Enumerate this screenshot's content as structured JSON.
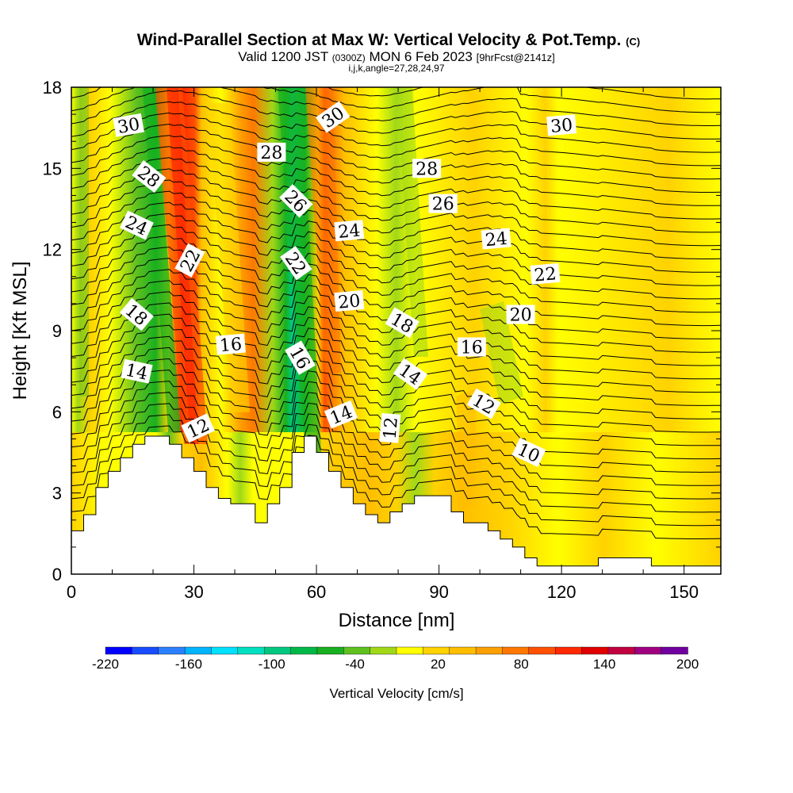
{
  "chart_data": {
    "type": "heatmap",
    "title": "Wind-Parallel Section at Max W: Vertical Velocity & Pot.Temp.",
    "title_units": "(C)",
    "subtitle": {
      "prefix": "Valid 1200 JST",
      "utc": "(0300Z)",
      "date": "MON 6 Feb 2023",
      "forecast": "[9hrFcst@2141z]"
    },
    "params": "i,j,k,angle=27,28,24,97",
    "xlabel": "Distance [nm]",
    "ylabel": "Height [Kft MSL]",
    "xlim": [
      0,
      159
    ],
    "ylim": [
      0,
      18
    ],
    "xticks": [
      "0",
      "30",
      "60",
      "90",
      "120",
      "150"
    ],
    "yticks": [
      "0",
      "3",
      "6",
      "9",
      "12",
      "15",
      "18"
    ],
    "colorbar": {
      "label": "Vertical Velocity [cm/s]",
      "ticks": [
        "-220",
        "-160",
        "-100",
        "-40",
        "20",
        "80",
        "140",
        "200"
      ],
      "colors": [
        "#0000ff",
        "#1a4cff",
        "#2a80ff",
        "#00b4ff",
        "#00e0ff",
        "#00e0c0",
        "#00c880",
        "#00b848",
        "#18b020",
        "#60c020",
        "#a0d818",
        "#ffff00",
        "#ffd200",
        "#ffbe00",
        "#ffa000",
        "#ff7800",
        "#ff5000",
        "#ff2800",
        "#e00000",
        "#c00040",
        "#a00080",
        "#7000a0"
      ]
    },
    "terrain_profile": {
      "x_nm": [
        0,
        3,
        3,
        6,
        6,
        9,
        9,
        12,
        12,
        15,
        15,
        18,
        18,
        21,
        21,
        24,
        24,
        27,
        27,
        30,
        30,
        33,
        33,
        36,
        36,
        39,
        39,
        45,
        45,
        48,
        48,
        51,
        51,
        54,
        54,
        57,
        57,
        60,
        60,
        63,
        63,
        66,
        66,
        69,
        69,
        72,
        72,
        75,
        75,
        78,
        78,
        81,
        81,
        84,
        84,
        93,
        93,
        96,
        96,
        102,
        102,
        105,
        105,
        108,
        108,
        111,
        111,
        114,
        114,
        120,
        120,
        129,
        129,
        142,
        142,
        147,
        147,
        159
      ],
      "z_kft": [
        1.6,
        1.6,
        2.2,
        2.2,
        3.2,
        3.2,
        3.8,
        3.8,
        4.3,
        4.3,
        4.8,
        4.8,
        5.1,
        5.1,
        5.1,
        5.1,
        4.8,
        4.8,
        4.3,
        4.3,
        3.8,
        3.8,
        3.2,
        3.2,
        2.8,
        2.8,
        2.6,
        2.6,
        1.9,
        1.9,
        2.6,
        2.6,
        3.2,
        3.2,
        4.5,
        4.5,
        5.1,
        5.1,
        4.5,
        4.5,
        3.8,
        3.8,
        3.2,
        3.2,
        2.6,
        2.6,
        2.2,
        2.2,
        1.9,
        1.9,
        2.3,
        2.3,
        2.6,
        2.6,
        2.9,
        2.9,
        2.3,
        2.3,
        1.9,
        1.9,
        1.6,
        1.6,
        1.3,
        1.3,
        1.0,
        1.0,
        0.6,
        0.6,
        0.3,
        0.3,
        0.3,
        0.3,
        0.6,
        0.6,
        0.3,
        0.3,
        0.3,
        0.3
      ]
    },
    "contour_labels": [
      {
        "text": "30",
        "x": 14,
        "z": 16.6,
        "rot": -10
      },
      {
        "text": "28",
        "x": 19,
        "z": 14.7,
        "rot": 38
      },
      {
        "text": "24",
        "x": 16,
        "z": 12.9,
        "rot": 25
      },
      {
        "text": "22",
        "x": 29,
        "z": 11.6,
        "rot": -62
      },
      {
        "text": "18",
        "x": 16,
        "z": 9.6,
        "rot": 40
      },
      {
        "text": "14",
        "x": 16,
        "z": 7.5,
        "rot": 12
      },
      {
        "text": "12",
        "x": 31,
        "z": 5.4,
        "rot": -25
      },
      {
        "text": "28",
        "x": 49,
        "z": 15.6,
        "rot": 0
      },
      {
        "text": "26",
        "x": 55,
        "z": 13.8,
        "rot": 45
      },
      {
        "text": "22",
        "x": 55,
        "z": 11.5,
        "rot": 55
      },
      {
        "text": "16",
        "x": 39,
        "z": 8.5,
        "rot": -5
      },
      {
        "text": "16",
        "x": 56,
        "z": 8.0,
        "rot": 60
      },
      {
        "text": "30",
        "x": 64,
        "z": 16.9,
        "rot": -35
      },
      {
        "text": "24",
        "x": 68,
        "z": 12.7,
        "rot": -5
      },
      {
        "text": "20",
        "x": 68,
        "z": 10.1,
        "rot": -5
      },
      {
        "text": "14",
        "x": 66,
        "z": 5.9,
        "rot": -22
      },
      {
        "text": "12",
        "x": 78,
        "z": 5.4,
        "rot": -85
      },
      {
        "text": "18",
        "x": 81,
        "z": 9.3,
        "rot": 30
      },
      {
        "text": "14",
        "x": 83,
        "z": 7.4,
        "rot": 35
      },
      {
        "text": "28",
        "x": 87,
        "z": 15.0,
        "rot": 0
      },
      {
        "text": "26",
        "x": 91,
        "z": 13.7,
        "rot": 0
      },
      {
        "text": "16",
        "x": 98,
        "z": 8.4,
        "rot": 0
      },
      {
        "text": "12",
        "x": 101,
        "z": 6.3,
        "rot": 30
      },
      {
        "text": "24",
        "x": 104,
        "z": 12.4,
        "rot": -5
      },
      {
        "text": "20",
        "x": 110,
        "z": 9.6,
        "rot": 0
      },
      {
        "text": "10",
        "x": 112,
        "z": 4.5,
        "rot": 25
      },
      {
        "text": "22",
        "x": 116,
        "z": 11.1,
        "rot": -5
      },
      {
        "text": "30",
        "x": 120,
        "z": 16.6,
        "rot": -5
      }
    ]
  }
}
